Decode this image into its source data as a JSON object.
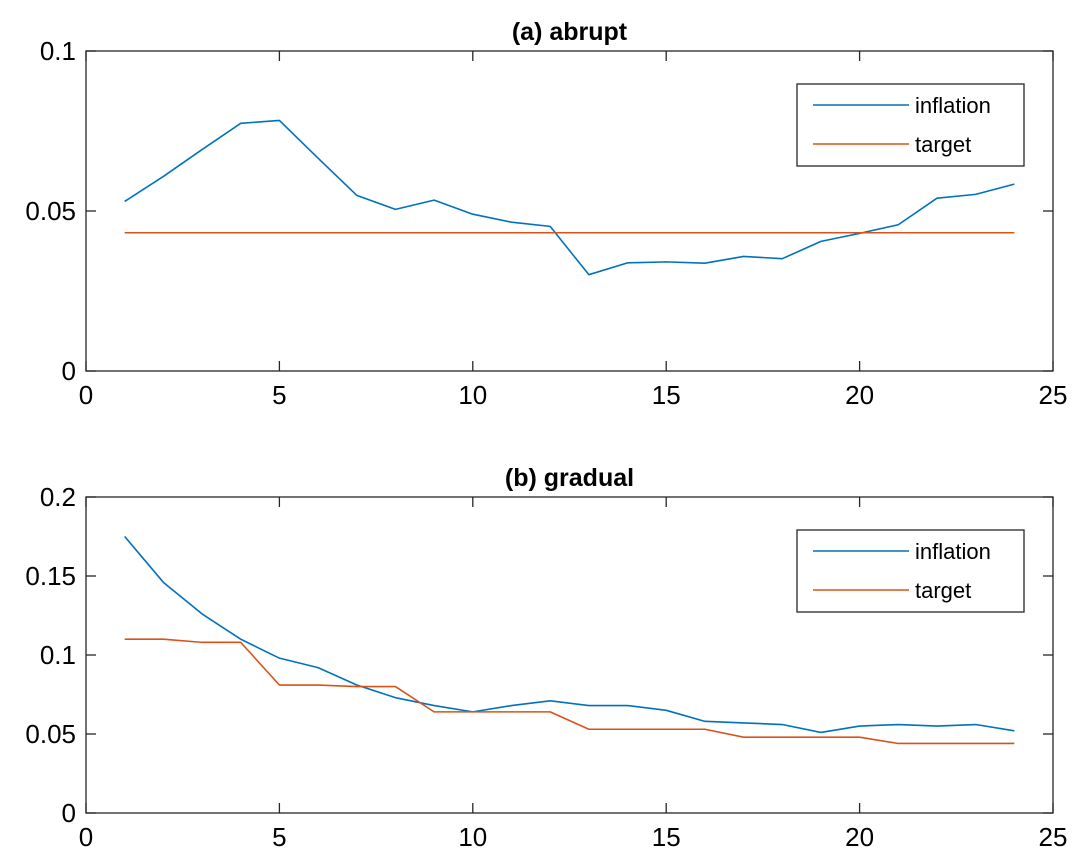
{
  "chart_data": [
    {
      "type": "line",
      "title": "(a) abrupt",
      "xlabel": "",
      "ylabel": "",
      "xlim": [
        0,
        25
      ],
      "ylim": [
        0,
        0.1
      ],
      "xticks": [
        0,
        5,
        10,
        15,
        20,
        25
      ],
      "xtick_labels": [
        "0",
        "5",
        "10",
        "15",
        "20",
        "25"
      ],
      "yticks": [
        0,
        0.05,
        0.1
      ],
      "ytick_labels": [
        "0",
        "0.05",
        "0.1"
      ],
      "grid": false,
      "legend_position": "top-right",
      "x": [
        1,
        2,
        3,
        4,
        5,
        6,
        7,
        8,
        9,
        10,
        11,
        12,
        13,
        14,
        15,
        16,
        17,
        18,
        19,
        20,
        21,
        22,
        23,
        24
      ],
      "series": [
        {
          "name": "inflation",
          "color": "#0072BD",
          "values": [
            0.053,
            0.0608,
            0.0692,
            0.0774,
            0.0783,
            0.0665,
            0.0549,
            0.0505,
            0.0534,
            0.049,
            0.0465,
            0.0452,
            0.0301,
            0.0338,
            0.0341,
            0.0337,
            0.0358,
            0.0351,
            0.0405,
            0.043,
            0.0457,
            0.054,
            0.0552,
            0.0584
          ]
        },
        {
          "name": "target",
          "color": "#D95319",
          "values": [
            0.0432,
            0.0432,
            0.0432,
            0.0432,
            0.0432,
            0.0432,
            0.0432,
            0.0432,
            0.0432,
            0.0432,
            0.0432,
            0.0432,
            0.0432,
            0.0432,
            0.0432,
            0.0432,
            0.0432,
            0.0432,
            0.0432,
            0.0432,
            0.0432,
            0.0432,
            0.0432,
            0.0432
          ]
        }
      ]
    },
    {
      "type": "line",
      "title": "(b) gradual",
      "xlabel": "",
      "ylabel": "",
      "xlim": [
        0,
        25
      ],
      "ylim": [
        0,
        0.2
      ],
      "xticks": [
        0,
        5,
        10,
        15,
        20,
        25
      ],
      "xtick_labels": [
        "0",
        "5",
        "10",
        "15",
        "20",
        "25"
      ],
      "yticks": [
        0,
        0.05,
        0.1,
        0.15,
        0.2
      ],
      "ytick_labels": [
        "0",
        "0.05",
        "0.1",
        "0.15",
        "0.2"
      ],
      "grid": false,
      "legend_position": "top-right",
      "x": [
        1,
        2,
        3,
        4,
        5,
        6,
        7,
        8,
        9,
        10,
        11,
        12,
        13,
        14,
        15,
        16,
        17,
        18,
        19,
        20,
        21,
        22,
        23,
        24
      ],
      "series": [
        {
          "name": "inflation",
          "color": "#0072BD",
          "values": [
            0.175,
            0.146,
            0.126,
            0.11,
            0.098,
            0.092,
            0.081,
            0.073,
            0.068,
            0.064,
            0.068,
            0.071,
            0.068,
            0.068,
            0.065,
            0.058,
            0.057,
            0.056,
            0.051,
            0.055,
            0.056,
            0.055,
            0.056,
            0.052
          ]
        },
        {
          "name": "target",
          "color": "#D95319",
          "values": [
            0.11,
            0.11,
            0.108,
            0.108,
            0.081,
            0.081,
            0.08,
            0.08,
            0.064,
            0.064,
            0.064,
            0.064,
            0.053,
            0.053,
            0.053,
            0.053,
            0.048,
            0.048,
            0.048,
            0.048,
            0.044,
            0.044,
            0.044,
            0.044
          ]
        }
      ]
    }
  ]
}
